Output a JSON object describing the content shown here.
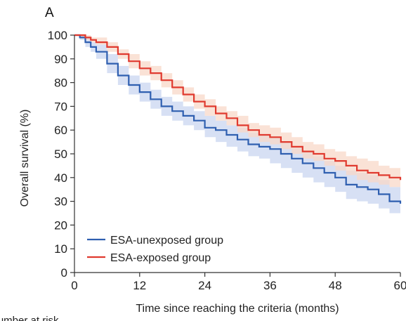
{
  "panel_label": "A",
  "chart_data": {
    "type": "line",
    "title": "",
    "xlabel": "Time since reaching the criteria (months)",
    "ylabel": "Overall survival (%)",
    "xlim": [
      0,
      60
    ],
    "ylim": [
      0,
      100
    ],
    "xticks": [
      0,
      12,
      24,
      36,
      48,
      60
    ],
    "yticks": [
      0,
      10,
      20,
      30,
      40,
      50,
      60,
      70,
      80,
      90,
      100
    ],
    "grid": false,
    "legend_position": "bottom-left",
    "series": [
      {
        "name": "ESA-unexposed group",
        "color": "#2f5fb0",
        "band_color": "#c9d6f0",
        "x": [
          0,
          1,
          2,
          3,
          4,
          6,
          8,
          10,
          12,
          14,
          16,
          18,
          20,
          22,
          24,
          26,
          28,
          30,
          32,
          34,
          36,
          38,
          40,
          42,
          44,
          46,
          48,
          50,
          52,
          54,
          56,
          58,
          60
        ],
        "y": [
          100,
          99,
          97,
          95,
          93,
          88,
          83,
          79,
          76,
          73,
          70,
          68,
          66,
          64,
          61,
          60,
          58,
          56,
          54,
          53,
          52,
          50,
          48,
          46,
          44,
          42,
          40,
          37,
          36,
          35,
          33,
          30,
          29
        ],
        "lower": [
          100,
          98,
          95,
          93,
          90,
          84,
          79,
          75,
          72,
          69,
          66,
          64,
          62,
          60,
          57,
          55,
          53,
          51,
          49,
          48,
          46,
          44,
          42,
          40,
          38,
          36,
          34,
          31,
          30,
          29,
          27,
          25,
          24
        ],
        "upper": [
          100,
          100,
          99,
          97,
          96,
          92,
          87,
          83,
          80,
          77,
          74,
          72,
          70,
          68,
          66,
          64,
          62,
          61,
          59,
          58,
          57,
          55,
          53,
          51,
          49,
          47,
          45,
          43,
          42,
          41,
          39,
          36,
          35
        ]
      },
      {
        "name": "ESA-exposed group",
        "color": "#e03a2f",
        "band_color": "#f8d8c8",
        "x": [
          0,
          1,
          2,
          3,
          4,
          6,
          8,
          10,
          12,
          14,
          16,
          18,
          20,
          22,
          24,
          26,
          28,
          30,
          32,
          34,
          36,
          38,
          40,
          42,
          44,
          46,
          48,
          50,
          52,
          54,
          56,
          58,
          60
        ],
        "y": [
          100,
          100,
          99,
          98,
          97,
          95,
          92,
          89,
          86,
          84,
          81,
          78,
          75,
          72,
          70,
          67,
          65,
          62,
          60,
          58,
          57,
          55,
          53,
          51,
          50,
          48,
          47,
          45,
          43,
          42,
          41,
          40,
          39
        ],
        "lower": [
          100,
          99,
          98,
          97,
          96,
          93,
          90,
          86,
          83,
          81,
          78,
          75,
          72,
          69,
          66,
          64,
          62,
          59,
          57,
          55,
          54,
          52,
          50,
          48,
          47,
          45,
          43,
          41,
          39,
          38,
          37,
          36,
          35
        ],
        "upper": [
          100,
          100,
          100,
          99,
          99,
          97,
          94,
          92,
          89,
          87,
          84,
          81,
          78,
          75,
          73,
          70,
          68,
          66,
          63,
          62,
          61,
          59,
          57,
          55,
          54,
          52,
          51,
          49,
          48,
          47,
          45,
          44,
          43
        ]
      }
    ]
  },
  "footer_text": "Number at risk"
}
